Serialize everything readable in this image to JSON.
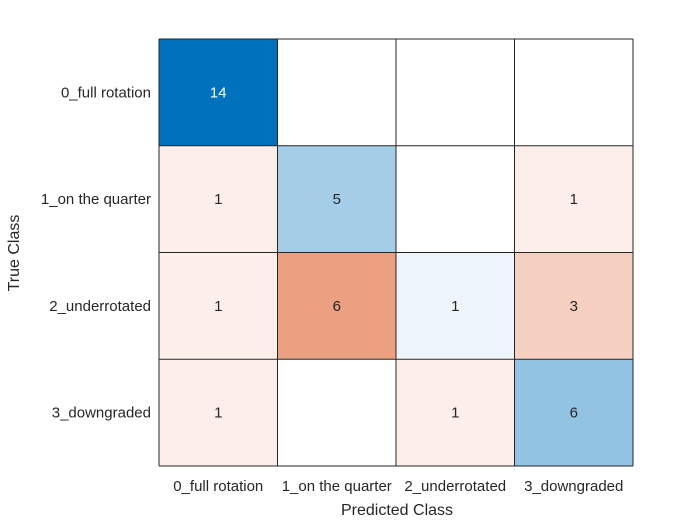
{
  "chart_data": {
    "type": "heatmap",
    "subtype": "confusion-matrix",
    "xlabel": "Predicted Class",
    "ylabel": "True Class",
    "x_categories": [
      "0_full rotation",
      "1_on the quarter",
      "2_underrotated",
      "3_downgraded"
    ],
    "y_categories": [
      "0_full rotation",
      "1_on the quarter",
      "2_underrotated",
      "3_downgraded"
    ],
    "matrix": [
      [
        14,
        0,
        0,
        0
      ],
      [
        1,
        5,
        0,
        1
      ],
      [
        1,
        6,
        1,
        3
      ],
      [
        1,
        0,
        1,
        6
      ]
    ],
    "colors": {
      "correct_max": "#0072bd",
      "incorrect_max": "#d95319",
      "empty": "#ffffff",
      "grid": "#262626",
      "text_dark": "#262626",
      "text_light": "#ffffff"
    }
  }
}
